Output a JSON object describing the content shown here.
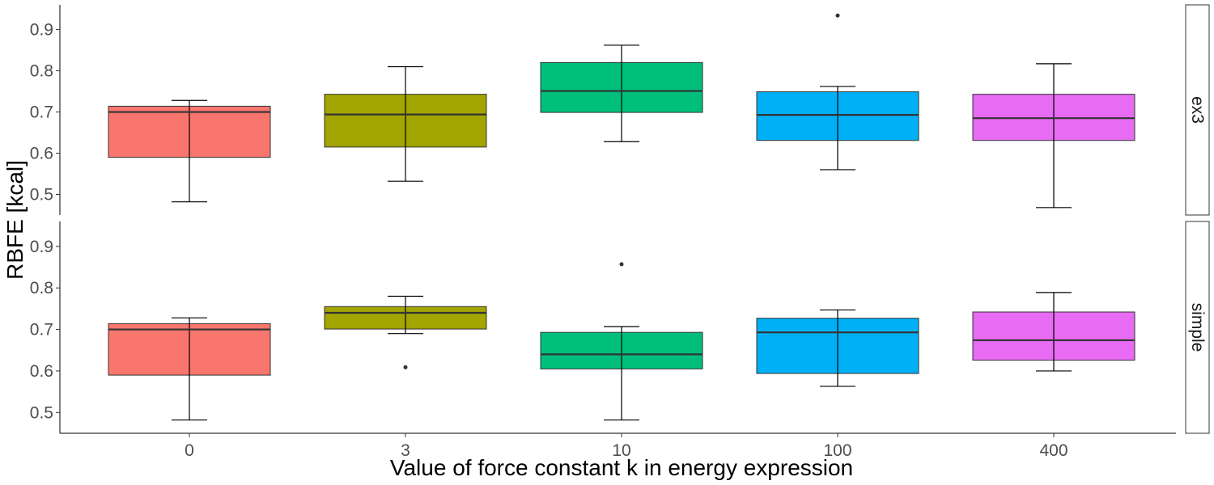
{
  "chart_data": {
    "type": "boxplot",
    "facet_layout": "vertical facets, strip labels on right, shared x axis",
    "grid": false,
    "legend": "none",
    "xlabel": "Value of force constant k in energy expression",
    "ylabel": "RBFE [kcal]",
    "categories": [
      "0",
      "3",
      "10",
      "100",
      "400"
    ],
    "colors": [
      "#F8766D",
      "#A3A500",
      "#00BF7D",
      "#00B0F6",
      "#E76BF3"
    ],
    "ylim": [
      0.45,
      0.96
    ],
    "yticks": [
      0.5,
      0.6,
      0.7,
      0.8,
      0.9
    ],
    "ytick_labels": [
      "0.5",
      "0.6",
      "0.7",
      "0.8",
      "0.9"
    ],
    "panels": [
      {
        "strip": "ex3",
        "boxes": [
          {
            "category": "0",
            "lower_whisker": 0.482,
            "q1": 0.59,
            "median": 0.7,
            "q3": 0.714,
            "upper_whisker": 0.728,
            "outliers": []
          },
          {
            "category": "3",
            "lower_whisker": 0.532,
            "q1": 0.615,
            "median": 0.694,
            "q3": 0.743,
            "upper_whisker": 0.81,
            "outliers": []
          },
          {
            "category": "10",
            "lower_whisker": 0.628,
            "q1": 0.699,
            "median": 0.751,
            "q3": 0.82,
            "upper_whisker": 0.862,
            "outliers": []
          },
          {
            "category": "100",
            "lower_whisker": 0.56,
            "q1": 0.631,
            "median": 0.693,
            "q3": 0.749,
            "upper_whisker": 0.762,
            "outliers": [
              0.934
            ]
          },
          {
            "category": "400",
            "lower_whisker": 0.468,
            "q1": 0.631,
            "median": 0.685,
            "q3": 0.743,
            "upper_whisker": 0.817,
            "outliers": []
          }
        ]
      },
      {
        "strip": "simple",
        "boxes": [
          {
            "category": "0",
            "lower_whisker": 0.482,
            "q1": 0.59,
            "median": 0.7,
            "q3": 0.714,
            "upper_whisker": 0.728,
            "outliers": []
          },
          {
            "category": "3",
            "lower_whisker": 0.69,
            "q1": 0.701,
            "median": 0.74,
            "q3": 0.755,
            "upper_whisker": 0.78,
            "outliers": [
              0.609
            ]
          },
          {
            "category": "10",
            "lower_whisker": 0.482,
            "q1": 0.605,
            "median": 0.64,
            "q3": 0.693,
            "upper_whisker": 0.707,
            "outliers": [
              0.857
            ]
          },
          {
            "category": "100",
            "lower_whisker": 0.563,
            "q1": 0.594,
            "median": 0.693,
            "q3": 0.727,
            "upper_whisker": 0.747,
            "outliers": []
          },
          {
            "category": "400",
            "lower_whisker": 0.6,
            "q1": 0.626,
            "median": 0.674,
            "q3": 0.742,
            "upper_whisker": 0.789,
            "outliers": []
          }
        ]
      }
    ]
  }
}
